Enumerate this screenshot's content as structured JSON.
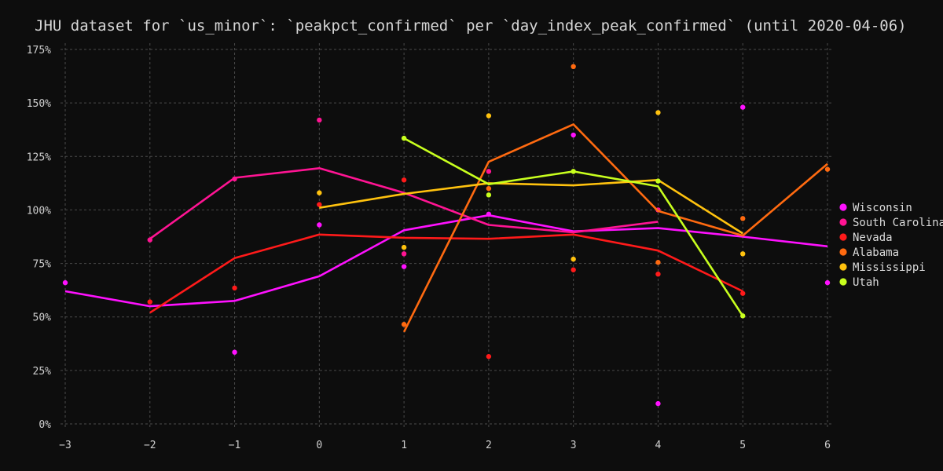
{
  "chart_data": {
    "type": "line",
    "title": "JHU dataset for `us_minor`: `peakpct_confirmed` per `day_index_peak_confirmed` (until 2020-04-06)",
    "xlabel": "",
    "ylabel": "",
    "xlim": [
      -3,
      6
    ],
    "ylim": [
      0,
      175
    ],
    "x_ticks": [
      -3,
      -2,
      -1,
      0,
      1,
      2,
      3,
      4,
      5,
      6
    ],
    "y_ticks": [
      0,
      25,
      50,
      75,
      100,
      125,
      150,
      175
    ],
    "y_tick_labels": [
      "0%",
      "25%",
      "50%",
      "75%",
      "100%",
      "125%",
      "150%",
      "175%"
    ],
    "grid": true,
    "legend_position": "right",
    "series": [
      {
        "name": "Wisconsin",
        "color": "#ff11ff",
        "line": [
          [
            -3,
            62
          ],
          [
            -2,
            55
          ],
          [
            -1,
            57.5
          ],
          [
            0,
            69
          ],
          [
            1,
            90.5
          ],
          [
            2,
            97.5
          ],
          [
            3,
            90
          ],
          [
            4,
            91.5
          ],
          [
            5,
            87.5
          ],
          [
            6,
            83
          ]
        ],
        "points": [
          [
            -3,
            66
          ],
          [
            -1,
            33.5
          ],
          [
            0,
            93
          ],
          [
            1,
            73.5
          ],
          [
            2,
            98
          ],
          [
            3,
            135
          ],
          [
            4,
            9.5
          ],
          [
            5,
            148
          ],
          [
            6,
            66
          ]
        ]
      },
      {
        "name": "South Carolina",
        "color": "#ff1493",
        "line": [
          [
            -2,
            86.5
          ],
          [
            -1,
            115
          ],
          [
            0,
            119.5
          ],
          [
            1,
            108
          ],
          [
            2,
            93
          ],
          [
            3,
            89.5
          ],
          [
            4,
            94.5
          ]
        ],
        "points": [
          [
            -2,
            86
          ],
          [
            -1,
            114.5
          ],
          [
            0,
            142
          ],
          [
            1,
            79.5
          ],
          [
            2,
            118
          ],
          [
            4,
            100
          ]
        ]
      },
      {
        "name": "Nevada",
        "color": "#ff1a1a",
        "line": [
          [
            -2,
            52
          ],
          [
            -1,
            77.5
          ],
          [
            0,
            88.5
          ],
          [
            1,
            87
          ],
          [
            2,
            86.5
          ],
          [
            3,
            88.5
          ],
          [
            4,
            81
          ],
          [
            5,
            62
          ]
        ],
        "points": [
          [
            -2,
            57
          ],
          [
            -1,
            63.5
          ],
          [
            0,
            102.5
          ],
          [
            1,
            114
          ],
          [
            2,
            31.5
          ],
          [
            3,
            72
          ],
          [
            4,
            70
          ],
          [
            5,
            61
          ]
        ]
      },
      {
        "name": "Alabama",
        "color": "#ff6a10",
        "line": [
          [
            1,
            43
          ],
          [
            2,
            122.5
          ],
          [
            3,
            140
          ],
          [
            4,
            99.5
          ],
          [
            5,
            88
          ],
          [
            6,
            121.5
          ]
        ],
        "points": [
          [
            1,
            46.5
          ],
          [
            2,
            110
          ],
          [
            3,
            167
          ],
          [
            4,
            75.5
          ],
          [
            5,
            96
          ],
          [
            6,
            119
          ]
        ]
      },
      {
        "name": "Mississippi",
        "color": "#ffc20e",
        "line": [
          [
            0,
            101
          ],
          [
            1,
            107.5
          ],
          [
            2,
            112.5
          ],
          [
            3,
            111.5
          ],
          [
            4,
            114
          ],
          [
            5,
            89
          ]
        ],
        "points": [
          [
            0,
            108
          ],
          [
            1,
            82.5
          ],
          [
            2,
            144
          ],
          [
            3,
            77
          ],
          [
            4,
            145.5
          ],
          [
            5,
            79.5
          ]
        ]
      },
      {
        "name": "Utah",
        "color": "#c8ff1e",
        "line": [
          [
            1,
            133.5
          ],
          [
            2,
            112
          ],
          [
            3,
            118
          ],
          [
            4,
            111
          ],
          [
            5,
            50.5
          ]
        ],
        "points": [
          [
            1,
            133.5
          ],
          [
            2,
            107
          ],
          [
            3,
            118
          ],
          [
            4,
            113.5
          ],
          [
            5,
            50.5
          ]
        ]
      }
    ]
  }
}
